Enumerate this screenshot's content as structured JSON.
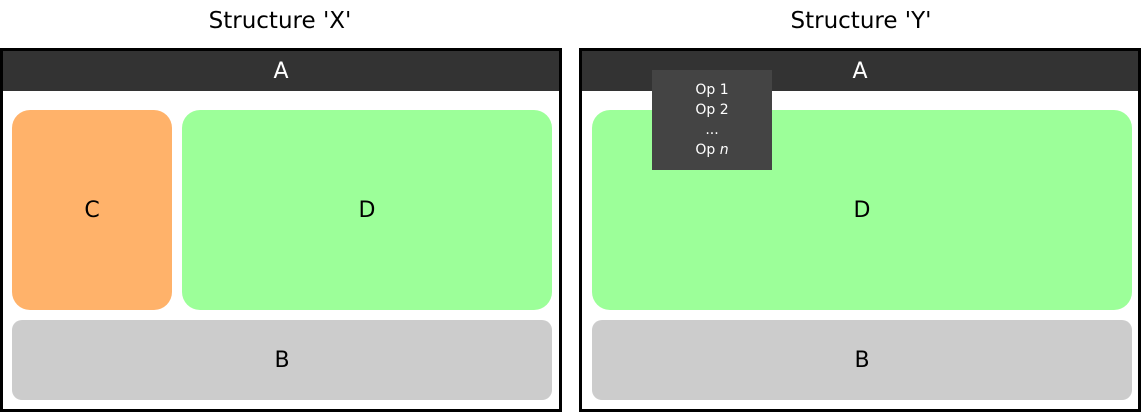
{
  "structures": [
    {
      "title": "Structure 'X'",
      "top_bar": "A",
      "blocks": {
        "c": "C",
        "d": "D",
        "b": "B"
      }
    },
    {
      "title": "Structure 'Y'",
      "top_bar": "A",
      "menu": {
        "items": [
          "Op 1",
          "Op 2",
          "..."
        ],
        "last_prefix": "Op",
        "last_var": "n"
      },
      "blocks": {
        "d": "D",
        "b": "B"
      }
    }
  ],
  "colors": {
    "top_bar": "#333333",
    "block_c": "#FFB26A",
    "block_d": "#9CFF99",
    "block_b": "#CCCCCC",
    "menu": "#444444"
  }
}
